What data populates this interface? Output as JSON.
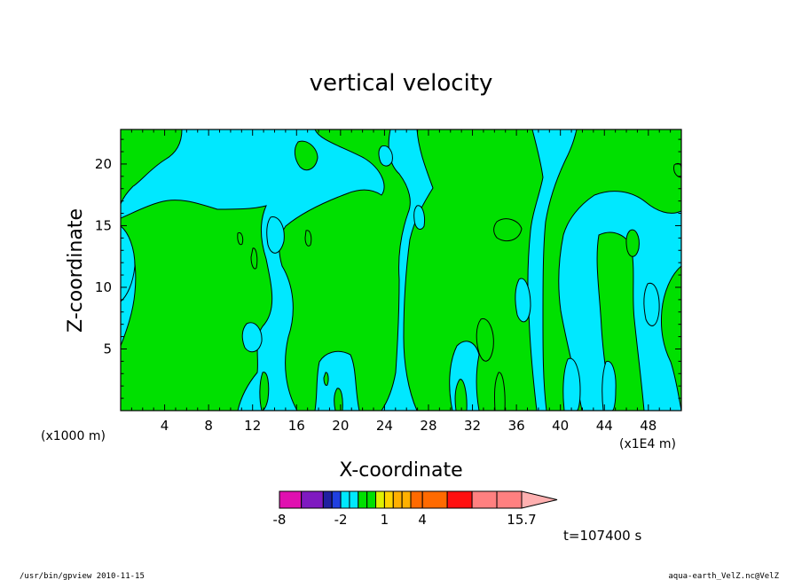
{
  "chart_data": {
    "type": "heatmap",
    "title": "vertical velocity",
    "xlabel": "X-coordinate",
    "ylabel": "Z-coordinate",
    "x_unit_left": "(x1000 m)",
    "x_unit_right": "(x1E4 m)",
    "xlim": [
      0,
      51
    ],
    "ylim": [
      0,
      22.8
    ],
    "x_ticks": [
      4,
      8,
      12,
      16,
      20,
      24,
      28,
      32,
      36,
      40,
      44,
      48
    ],
    "y_ticks": [
      5,
      10,
      15,
      20
    ],
    "contour_levels": [
      -8,
      -6,
      -4,
      -3,
      -2,
      -1.5,
      -1,
      0,
      0.5,
      1,
      1.5,
      2,
      3,
      4,
      7,
      10,
      13,
      15.7
    ],
    "colorbar_colors": [
      "#e010b0",
      "#7f1ac0",
      "#2020a0",
      "#2040e0",
      "#00e8ff",
      "#00e000",
      "#e0f000",
      "#ffd400",
      "#ffb000",
      "#ff6a00",
      "#ff1010",
      "#ff8080",
      "#ffb0b0"
    ],
    "colorbar_labels": [
      "-8",
      "-2",
      "1",
      "4",
      "15.7"
    ],
    "colorbar_label_values": [
      -8,
      -2,
      1,
      4,
      15.7
    ],
    "field_colors": {
      "positive": "#00e000",
      "negative": "#00e8ff"
    },
    "time": "t=107400 s"
  },
  "footer": {
    "left": "/usr/bin/gpview   2010-11-15",
    "right": "aqua-earth_VelZ.nc@VelZ"
  }
}
